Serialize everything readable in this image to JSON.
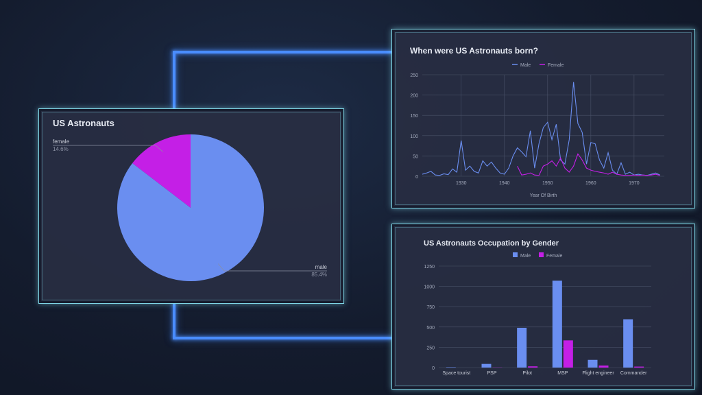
{
  "colors": {
    "male": "#6a8ef0",
    "female": "#c41fe6",
    "grid": "#4a5268",
    "axis_text": "#a4abbd"
  },
  "chart_data": [
    {
      "type": "pie",
      "title": "US Astronauts",
      "slices": [
        {
          "label": "female",
          "value": 14.6,
          "value_label": "14.6%"
        },
        {
          "label": "male",
          "value": 85.4,
          "value_label": "85.4%"
        }
      ]
    },
    {
      "type": "line",
      "title": "When were US Astronauts born?",
      "xlabel": "Year Of Birth",
      "ylabel": "",
      "xlim": [
        1921,
        1977
      ],
      "ylim": [
        0,
        250
      ],
      "xticks": [
        1930,
        1940,
        1950,
        1960,
        1970
      ],
      "yticks": [
        0,
        50,
        100,
        150,
        200,
        250
      ],
      "legend_position": "top-center",
      "grid": true,
      "series": [
        {
          "name": "Male",
          "points": [
            [
              1921,
              5
            ],
            [
              1922,
              8
            ],
            [
              1923,
              12
            ],
            [
              1924,
              3
            ],
            [
              1925,
              2
            ],
            [
              1926,
              6
            ],
            [
              1927,
              4
            ],
            [
              1928,
              18
            ],
            [
              1929,
              10
            ],
            [
              1930,
              88
            ],
            [
              1931,
              15
            ],
            [
              1932,
              25
            ],
            [
              1933,
              12
            ],
            [
              1934,
              8
            ],
            [
              1935,
              38
            ],
            [
              1936,
              25
            ],
            [
              1937,
              35
            ],
            [
              1938,
              20
            ],
            [
              1939,
              8
            ],
            [
              1940,
              5
            ],
            [
              1941,
              20
            ],
            [
              1942,
              50
            ],
            [
              1943,
              70
            ],
            [
              1944,
              60
            ],
            [
              1945,
              48
            ],
            [
              1946,
              112
            ],
            [
              1947,
              20
            ],
            [
              1948,
              80
            ],
            [
              1949,
              120
            ],
            [
              1950,
              133
            ],
            [
              1951,
              90
            ],
            [
              1952,
              128
            ],
            [
              1953,
              40
            ],
            [
              1954,
              30
            ],
            [
              1955,
              90
            ],
            [
              1956,
              232
            ],
            [
              1957,
              130
            ],
            [
              1958,
              108
            ],
            [
              1959,
              30
            ],
            [
              1960,
              83
            ],
            [
              1961,
              80
            ],
            [
              1962,
              40
            ],
            [
              1963,
              20
            ],
            [
              1964,
              58
            ],
            [
              1965,
              15
            ],
            [
              1966,
              5
            ],
            [
              1967,
              33
            ],
            [
              1968,
              5
            ],
            [
              1969,
              10
            ],
            [
              1970,
              3
            ],
            [
              1971,
              5
            ],
            [
              1972,
              3
            ],
            [
              1973,
              2
            ],
            [
              1974,
              5
            ],
            [
              1975,
              8
            ],
            [
              1976,
              3
            ]
          ]
        },
        {
          "name": "Female",
          "points": [
            [
              1943,
              25
            ],
            [
              1944,
              3
            ],
            [
              1945,
              5
            ],
            [
              1946,
              8
            ],
            [
              1947,
              3
            ],
            [
              1948,
              2
            ],
            [
              1949,
              25
            ],
            [
              1950,
              30
            ],
            [
              1951,
              38
            ],
            [
              1952,
              25
            ],
            [
              1953,
              45
            ],
            [
              1954,
              20
            ],
            [
              1955,
              10
            ],
            [
              1956,
              25
            ],
            [
              1957,
              55
            ],
            [
              1958,
              40
            ],
            [
              1959,
              20
            ],
            [
              1960,
              15
            ],
            [
              1961,
              12
            ],
            [
              1962,
              10
            ],
            [
              1963,
              8
            ],
            [
              1964,
              5
            ],
            [
              1965,
              10
            ],
            [
              1966,
              5
            ],
            [
              1967,
              3
            ],
            [
              1968,
              2
            ],
            [
              1969,
              2
            ],
            [
              1970,
              3
            ],
            [
              1971,
              2
            ],
            [
              1972,
              3
            ],
            [
              1973,
              2
            ],
            [
              1974,
              3
            ],
            [
              1975,
              5
            ],
            [
              1976,
              2
            ]
          ]
        }
      ]
    },
    {
      "type": "bar",
      "title": "US Astronauts Occupation by Gender",
      "categories": [
        "Space tourist",
        "PSP",
        "Pilot",
        "MSP",
        "Flight engineer",
        "Commander"
      ],
      "ylim": [
        0,
        1250
      ],
      "yticks": [
        0,
        250,
        500,
        750,
        1000,
        1250
      ],
      "legend_position": "top-center",
      "grid": true,
      "series": [
        {
          "name": "Male",
          "values": [
            5,
            45,
            490,
            1070,
            95,
            595
          ]
        },
        {
          "name": "Female",
          "values": [
            0,
            2,
            15,
            335,
            25,
            12
          ]
        }
      ]
    }
  ]
}
